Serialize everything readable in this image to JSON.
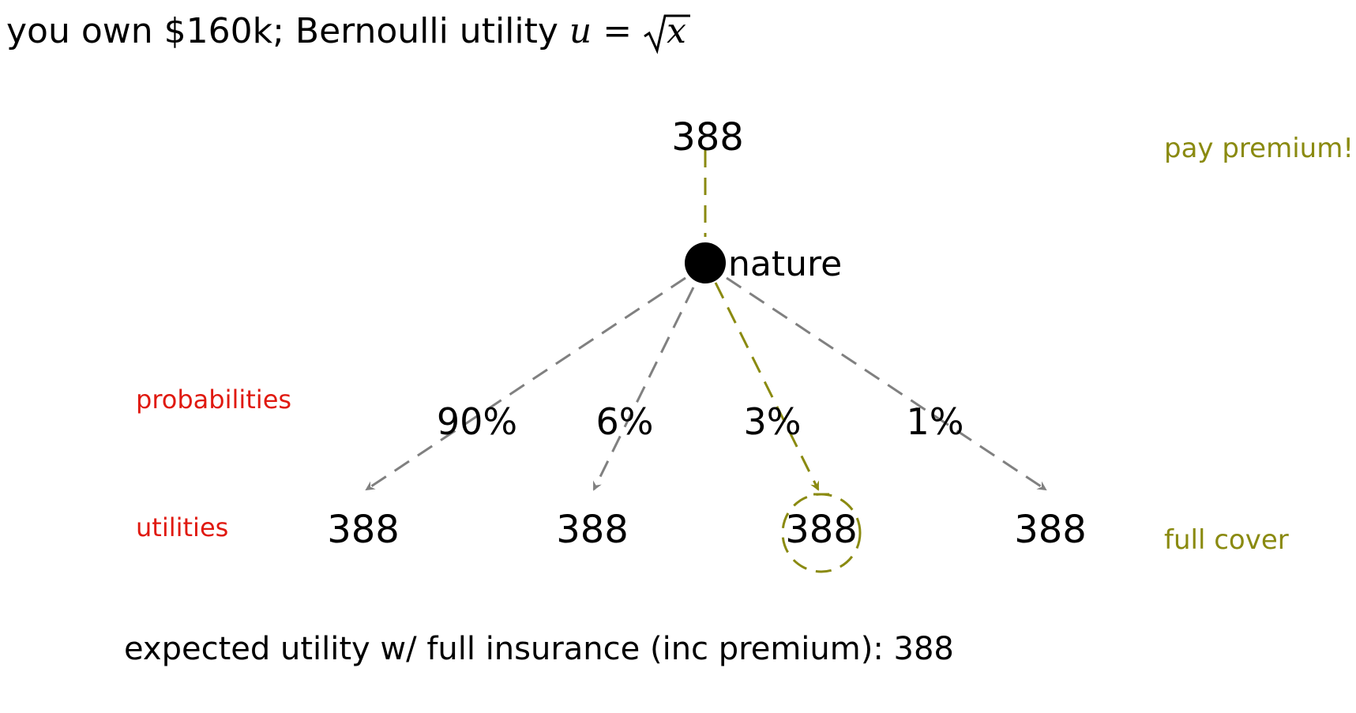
{
  "title": {
    "prefix": "you own $160k; Bernoulli utility ",
    "u": "u",
    "eq": "=",
    "x": "x"
  },
  "tree": {
    "root_value": "388",
    "root_label": "pay premium!",
    "node_label": "nature",
    "row_labels": {
      "probabilities": "probabilities",
      "utilities": "utilities"
    },
    "bottom_label": "full cover",
    "branches": [
      {
        "prob": "90%",
        "utility": "388",
        "highlighted": false
      },
      {
        "prob": "6%",
        "utility": "388",
        "highlighted": false
      },
      {
        "prob": "3%",
        "utility": "388",
        "highlighted": true
      },
      {
        "prob": "1%",
        "utility": "388",
        "highlighted": false
      }
    ],
    "colors": {
      "branch": "#808080",
      "highlight": "#8a8a10",
      "label_red": "#e0190f",
      "node": "#000000"
    }
  },
  "summary": {
    "label": "expected utility w/ full insurance (inc premium):",
    "value": "388"
  }
}
